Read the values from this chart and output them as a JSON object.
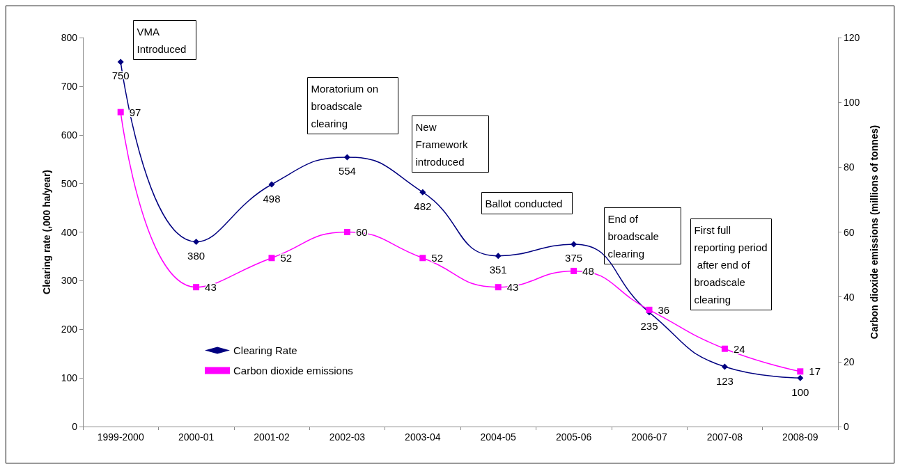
{
  "chart_data": {
    "type": "line",
    "categories": [
      "1999-2000",
      "2000-01",
      "2001-02",
      "2002-03",
      "2003-04",
      "2004-05",
      "2005-06",
      "2006-07",
      "2007-08",
      "2008-09"
    ],
    "ylabel": "Clearing rate (,000 ha/year)",
    "y2label": "Carbon dioxide emissions (millions of tonnes)",
    "ylim": [
      0,
      800
    ],
    "yticks": [
      0,
      100,
      200,
      300,
      400,
      500,
      600,
      700,
      800
    ],
    "y2lim": [
      0,
      120
    ],
    "y2ticks": [
      0,
      20,
      40,
      60,
      80,
      100,
      120
    ],
    "series": [
      {
        "name": "Clearing Rate",
        "color": "#000080",
        "marker": "diamond",
        "values": [
          750,
          380,
          498,
          554,
          482,
          351,
          375,
          235,
          123,
          100
        ]
      },
      {
        "name": "Carbon dioxide emissions",
        "color": "#ff00ff",
        "marker": "square",
        "axis": "y2",
        "values": [
          97,
          43,
          52,
          60,
          52,
          43,
          48,
          36,
          24,
          17
        ]
      }
    ],
    "data_labels": true,
    "legend": "bottom left",
    "grid": false,
    "line_style": "solid",
    "annotations": [
      "VMA Introduced",
      "Moratorium on broadscale clearing",
      "New Framework introduced",
      "Ballot conducted",
      "End of broadscale clearing",
      "First full reporting period after end of broadscale clearing"
    ]
  }
}
